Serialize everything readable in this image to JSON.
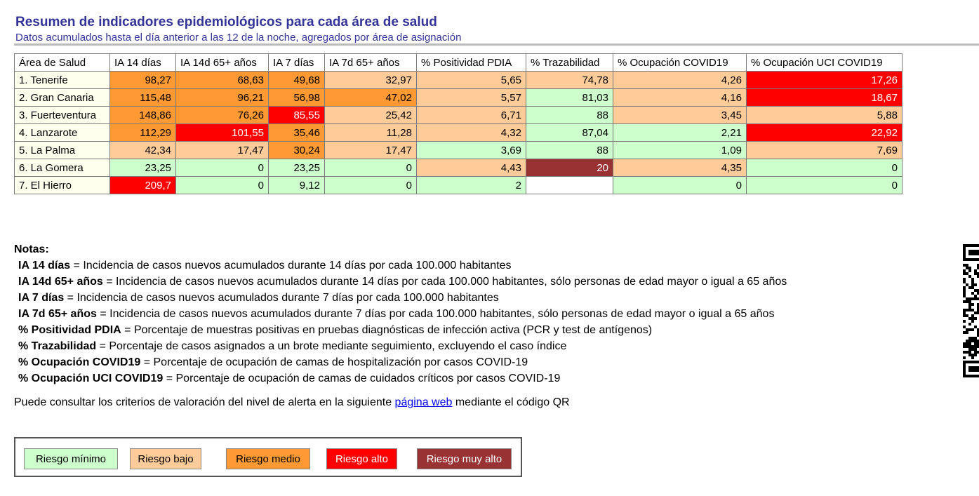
{
  "header": {
    "title": "Resumen de indicadores epidemiológicos para cada área de salud",
    "subtitle": "Datos acumulados hasta el día anterior a las 12 de la noche, agregados por área de asignación"
  },
  "table": {
    "columns": [
      "Área de Salud",
      "IA 14 días",
      "IA 14d 65+ años",
      "IA 7 días",
      "IA 7d 65+ años",
      "% Positividad PDIA",
      "% Trazabilidad",
      "% Ocupación COVID19",
      "% Ocupación UCI COVID19"
    ],
    "rows": [
      {
        "area": "1. Tenerife",
        "cells": [
          "98,27",
          "68,63",
          "49,68",
          "32,97",
          "5,65",
          "74,78",
          "4,26",
          "17,26"
        ],
        "risk": [
          2,
          2,
          2,
          1,
          1,
          1,
          1,
          3
        ]
      },
      {
        "area": "2. Gran Canaria",
        "cells": [
          "115,48",
          "96,21",
          "56,98",
          "47,02",
          "5,57",
          "81,03",
          "4,16",
          "18,67"
        ],
        "risk": [
          2,
          2,
          2,
          2,
          1,
          0,
          1,
          3
        ]
      },
      {
        "area": "3. Fuerteventura",
        "cells": [
          "148,86",
          "76,26",
          "85,55",
          "25,42",
          "6,71",
          "88",
          "3,45",
          "5,88"
        ],
        "risk": [
          2,
          2,
          3,
          1,
          1,
          0,
          1,
          1
        ]
      },
      {
        "area": "4. Lanzarote",
        "cells": [
          "112,29",
          "101,55",
          "35,46",
          "11,28",
          "4,32",
          "87,04",
          "2,21",
          "22,92"
        ],
        "risk": [
          2,
          3,
          2,
          1,
          1,
          0,
          0,
          3
        ]
      },
      {
        "area": "5. La Palma",
        "cells": [
          "42,34",
          "17,47",
          "30,24",
          "17,47",
          "3,69",
          "88",
          "1,09",
          "7,69"
        ],
        "risk": [
          1,
          1,
          2,
          1,
          0,
          0,
          0,
          1
        ]
      },
      {
        "area": "6. La Gomera",
        "cells": [
          "23,25",
          "0",
          "23,25",
          "0",
          "4,43",
          "20",
          "4,35",
          "0"
        ],
        "risk": [
          0,
          0,
          0,
          0,
          1,
          4,
          1,
          0
        ]
      },
      {
        "area": "7. El Hierro",
        "cells": [
          "209,7",
          "0",
          "9,12",
          "0",
          "2",
          "",
          "0",
          "0"
        ],
        "risk": [
          3,
          0,
          0,
          0,
          0,
          -1,
          0,
          0
        ]
      }
    ]
  },
  "notes": {
    "heading": "Notas:",
    "items": [
      {
        "term": "IA 14 días",
        "def": " = Incidencia de casos nuevos acumulados durante 14 días por cada 100.000 habitantes"
      },
      {
        "term": "IA 14d 65+ años",
        "def": " = Incidencia de casos nuevos acumulados durante 14 días por cada 100.000 habitantes, sólo personas de edad mayor o igual a 65 años"
      },
      {
        "term": "IA 7 días",
        "def": " = Incidencia de casos nuevos acumulados durante 7 días por cada 100.000 habitantes"
      },
      {
        "term": "IA 7d 65+ años",
        "def": " = Incidencia de casos nuevos acumulados durante 7 días por cada 100.000 habitantes, sólo personas de edad mayor o igual a 65 años"
      },
      {
        "term": "% Positividad PDIA",
        "def": " = Porcentaje de muestras positivas en pruebas diagnósticas de infección activa (PCR y test de antígenos)"
      },
      {
        "term": "% Trazabilidad",
        "def": " = Porcentaje de casos asignados a un brote mediante seguimiento, excluyendo el caso índice"
      },
      {
        "term": "% Ocupación COVID19",
        "def": " = Porcentaje de ocupación de camas de hospitalización por casos COVID-19"
      },
      {
        "term": "% Ocupación UCI COVID19",
        "def": " = Porcentaje de ocupación de camas de cuidados críticos por casos COVID-19"
      }
    ]
  },
  "consult": {
    "before": "Puede consultar los criterios de valoración del nivel de alerta en la siguiente ",
    "link": "página web",
    "after": " mediante el código QR"
  },
  "legend": {
    "items": [
      {
        "label": "Riesgo mínimo",
        "color": "#ccffcc",
        "text_color": "#000000"
      },
      {
        "label": "Riesgo bajo",
        "color": "#ffcc99",
        "text_color": "#000000"
      },
      {
        "label": "Riesgo medio",
        "color": "#ff9933",
        "text_color": "#000000"
      },
      {
        "label": "Riesgo alto",
        "color": "#ff0000",
        "text_color": "#ffffff"
      },
      {
        "label": "Riesgo muy alto",
        "color": "#993333",
        "text_color": "#ffffff"
      }
    ]
  },
  "qr": {
    "icon": "qr-code-icon"
  }
}
